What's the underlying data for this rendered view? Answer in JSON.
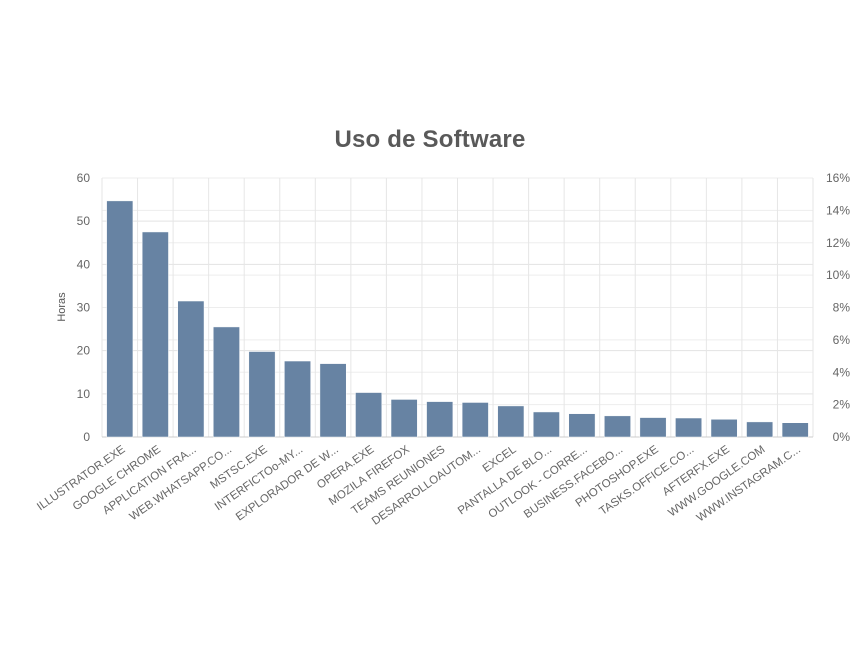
{
  "chart_data": {
    "type": "bar",
    "title": "Uso de Software",
    "ylabel": "Horas",
    "ylabel_right": "",
    "ylim": [
      0,
      60
    ],
    "y_ticks": [
      0,
      10,
      20,
      30,
      40,
      50,
      60
    ],
    "y2lim": [
      0,
      16
    ],
    "y2_ticks": [
      "0%",
      "2%",
      "4%",
      "6%",
      "8%",
      "10%",
      "12%",
      "14%",
      "16%"
    ],
    "grid": true,
    "legend": "none",
    "bar_color": "#6783a3",
    "categories": [
      "ILLUSTRATOR.EXE",
      "GOOGLE CHROME",
      "APPLICATION FRA...",
      "WEB.WHATSAPP.CO...",
      "MSTSC.EXE",
      "INTERFICTOo-MY...",
      "EXPLORADOR DE W...",
      "OPERA.EXE",
      "MOZILA FIREFOX",
      "TEAMS REUNIONES",
      "DESARROLLOAUTOM...",
      "EXCEL",
      "PANTALLA DE BLO...",
      "OUTLOOK - CORRE...",
      "BUSINESS.FACEBO...",
      "PHOTOSHOP.EXE",
      "TASKS.OFFICE.CO...",
      "AFTERFX.EXE",
      "WWW.GOOGLE.COM",
      "WWW.INSTAGRAM.C..."
    ],
    "values": [
      54.7,
      47.5,
      31.5,
      25.5,
      19.8,
      17.6,
      17.0,
      10.3,
      8.7,
      8.2,
      8.0,
      7.2,
      5.8,
      5.4,
      4.9,
      4.5,
      4.4,
      4.1,
      3.5,
      3.3
    ]
  }
}
